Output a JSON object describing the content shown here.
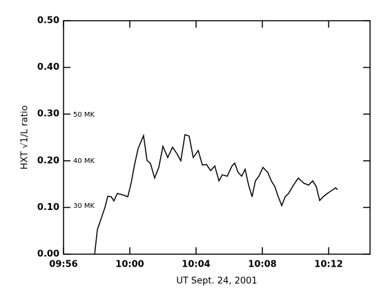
{
  "chart_data": {
    "type": "line",
    "xlabel": "UT Sept. 24, 2001",
    "ylabel": "HXT √1/L ratio",
    "annotations": [
      "50 MK",
      "40 MK",
      "30 MK"
    ],
    "xlim": [
      596,
      614.5
    ],
    "xticks": [
      {
        "value": 596,
        "label": "09:56"
      },
      {
        "value": 600,
        "label": "10:00"
      },
      {
        "value": 604,
        "label": "10:04"
      },
      {
        "value": 608,
        "label": "10:08"
      },
      {
        "value": 612,
        "label": "10:12"
      }
    ],
    "ylim": [
      0,
      0.5
    ],
    "yticks": [
      {
        "value": 0,
        "label": "0.00"
      },
      {
        "value": 0.1,
        "label": "0.10"
      },
      {
        "value": 0.2,
        "label": "0.20"
      },
      {
        "value": 0.3,
        "label": "0.30"
      },
      {
        "value": 0.4,
        "label": "0.40"
      },
      {
        "value": 0.5,
        "label": "0.50"
      }
    ],
    "color": "#000000",
    "x": [
      597.88,
      598.04,
      598.25,
      598.5,
      598.67,
      598.88,
      599.04,
      599.25,
      599.58,
      599.88,
      600.08,
      600.29,
      600.5,
      600.83,
      601.04,
      601.25,
      601.5,
      601.75,
      602,
      602.29,
      602.58,
      602.83,
      603.08,
      603.33,
      603.58,
      603.83,
      604.13,
      604.38,
      604.63,
      604.88,
      605.13,
      605.38,
      605.58,
      605.88,
      606.17,
      606.33,
      606.54,
      606.75,
      606.96,
      607.17,
      607.38,
      607.58,
      607.79,
      608.04,
      608.33,
      608.54,
      608.75,
      608.96,
      609.17,
      609.38,
      609.58,
      609.88,
      610.17,
      610.5,
      610.79,
      611.04,
      611.25,
      611.46,
      611.67,
      611.92,
      612.17,
      612.42,
      612.54
    ],
    "values": [
      0,
      0.052,
      0.074,
      0.1,
      0.124,
      0.123,
      0.114,
      0.13,
      0.127,
      0.123,
      0.152,
      0.192,
      0.226,
      0.254,
      0.201,
      0.194,
      0.163,
      0.186,
      0.231,
      0.207,
      0.229,
      0.216,
      0.2,
      0.256,
      0.253,
      0.207,
      0.222,
      0.191,
      0.192,
      0.179,
      0.189,
      0.157,
      0.17,
      0.167,
      0.189,
      0.195,
      0.175,
      0.167,
      0.182,
      0.148,
      0.123,
      0.157,
      0.167,
      0.186,
      0.175,
      0.157,
      0.145,
      0.123,
      0.104,
      0.123,
      0.13,
      0.148,
      0.163,
      0.152,
      0.148,
      0.157,
      0.145,
      0.115,
      0.123,
      0.13,
      0.136,
      0.142,
      0.138
    ]
  }
}
